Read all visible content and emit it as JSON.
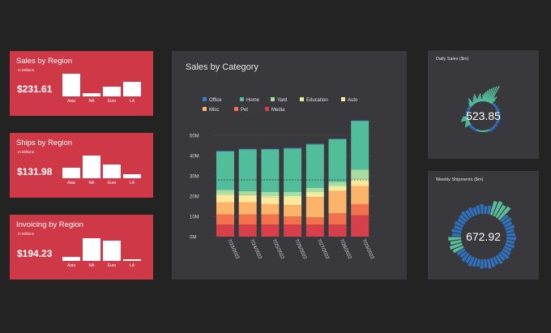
{
  "region_cards": [
    {
      "title": "Sales by Region",
      "subtitle": "In Millions",
      "value": "$231.61",
      "categories": [
        "Asia",
        "NA",
        "Euro",
        "LA"
      ],
      "values": [
        1.0,
        0.15,
        0.42,
        0.64
      ]
    },
    {
      "title": "Ships by Region",
      "subtitle": "In Millions",
      "value": "$131.98",
      "categories": [
        "Asia",
        "NA",
        "Euro",
        "LA"
      ],
      "values": [
        0.45,
        1.0,
        0.62,
        0.18
      ]
    },
    {
      "title": "Invoicing by Region",
      "subtitle": "In Millions",
      "value": "$194.23",
      "categories": [
        "Asia",
        "NA",
        "Euro",
        "LA"
      ],
      "values": [
        0.17,
        1.0,
        0.88,
        0.08
      ]
    }
  ],
  "category_panel": {
    "title": "Sales by Category"
  },
  "daily_panel": {
    "title": "Daily Sales ($m)",
    "value": "523.85"
  },
  "weekly_panel": {
    "title": "Weekly Shipments ($m)",
    "value": "672.92"
  },
  "colors": {
    "Office": "#3d7ec4",
    "Home": "#52bd9b",
    "Yard": "#a8dca3",
    "Education": "#e2f0a0",
    "Auto": "#fde89e",
    "Misc": "#fbb469",
    "Pet": "#f2734b",
    "Media": "#d73f4b",
    "card_red": "#cf3847",
    "panel_dark": "#39383d",
    "ring_blue": "#2f73c0",
    "ring_green": "#59bd9c"
  },
  "chart_data": {
    "type": "bar",
    "stacked": true,
    "categories": [
      "7/23/2022",
      "7/24/2022",
      "7/25/2022",
      "7/26/2022",
      "7/27/2022",
      "7/28/2022",
      "7/29/2022"
    ],
    "series": [
      {
        "name": "Media",
        "values": [
          6,
          6,
          6,
          6,
          6,
          6,
          10.5
        ]
      },
      {
        "name": "Pet",
        "values": [
          5,
          5,
          5,
          4,
          3.5,
          5.5,
          5.5
        ]
      },
      {
        "name": "Misc",
        "values": [
          6,
          6,
          5,
          5.5,
          10,
          11,
          9
        ]
      },
      {
        "name": "Auto",
        "values": [
          3.5,
          3,
          3.5,
          3.5,
          1.5,
          1.5,
          2
        ]
      },
      {
        "name": "Education",
        "values": [
          0.5,
          0.5,
          0.5,
          1,
          1,
          1,
          1.5
        ]
      },
      {
        "name": "Yard",
        "values": [
          2,
          2,
          2,
          2,
          2,
          2,
          4.5
        ]
      },
      {
        "name": "Home",
        "values": [
          19,
          20.5,
          21,
          21.5,
          21.5,
          21,
          24
        ]
      },
      {
        "name": "Office",
        "values": [
          0.3,
          0.3,
          0.3,
          0.3,
          0.3,
          0.3,
          0.3
        ]
      }
    ],
    "yticks": [
      "0M",
      "10M",
      "20M",
      "30M",
      "40M",
      "50M"
    ],
    "ylim": [
      0,
      55
    ],
    "reference_line": 28,
    "legend": {
      "position": "top-left",
      "items": [
        "Office",
        "Home",
        "Yard",
        "Education",
        "Auto",
        "Misc",
        "Pet",
        "Media"
      ]
    }
  }
}
